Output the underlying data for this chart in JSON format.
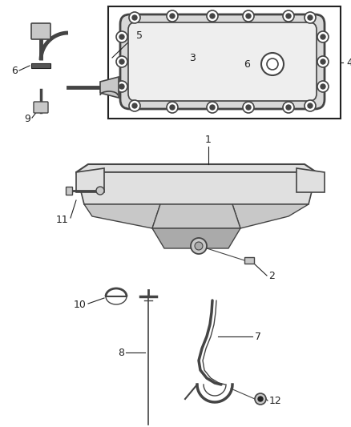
{
  "bg_color": "#ffffff",
  "fig_width": 4.38,
  "fig_height": 5.33,
  "dpi": 100,
  "lc": "#444444",
  "dc": "#222222",
  "fc_light": "#e0e0e0",
  "fc_mid": "#c8c8c8",
  "fc_dark": "#aaaaaa"
}
